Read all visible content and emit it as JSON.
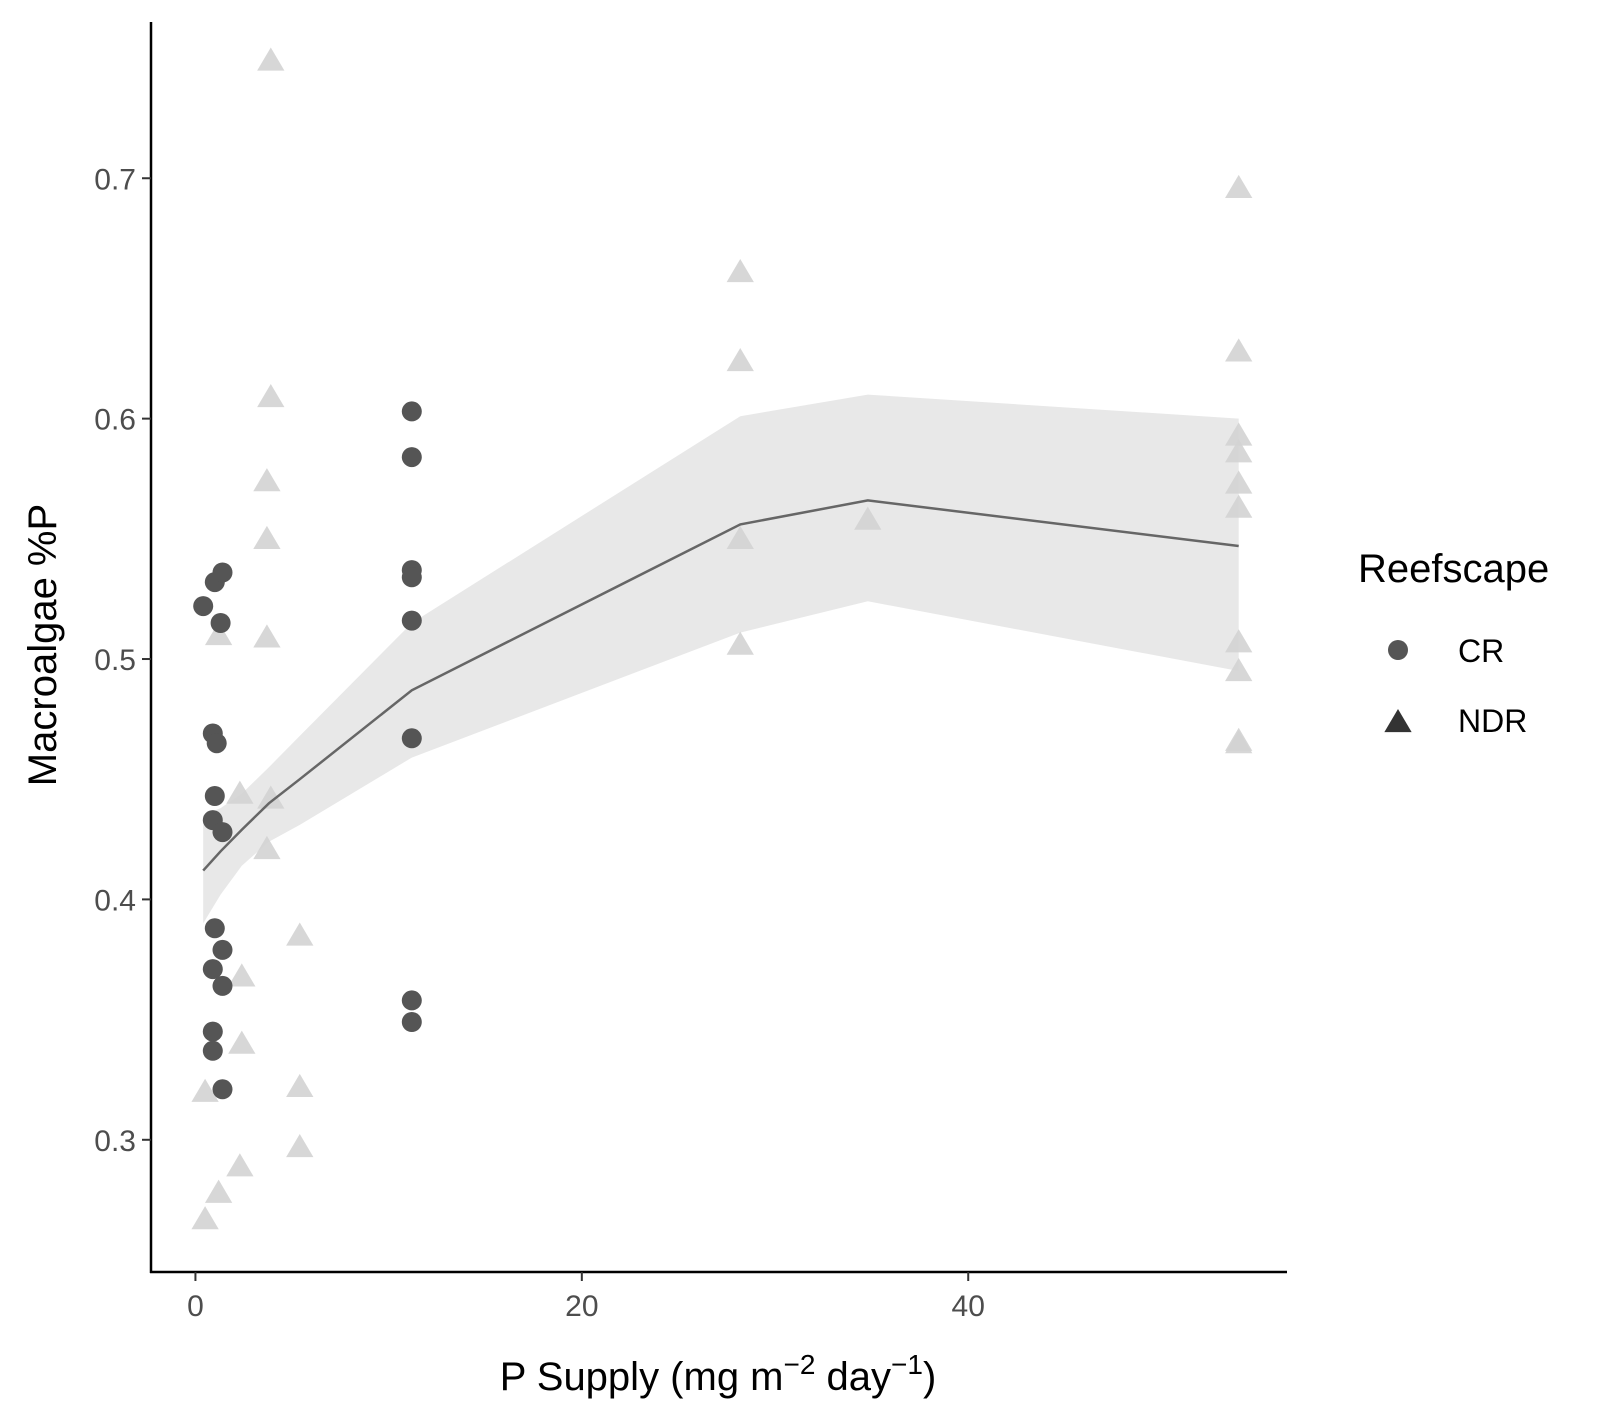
{
  "chart_data": {
    "type": "scatter",
    "title": "",
    "xlabel": {
      "base": "P Supply (mg m",
      "sup1": "−2",
      "mid": " day",
      "sup2": "−1",
      "end": ")"
    },
    "ylabel": "Macroalgae %P",
    "xlim": [
      -2.3,
      56.5
    ],
    "ylim": [
      0.245,
      0.765
    ],
    "x_ticks": [
      {
        "value": 0,
        "label": "0"
      },
      {
        "value": 20,
        "label": "20"
      },
      {
        "value": 40,
        "label": "40"
      }
    ],
    "y_ticks": [
      {
        "value": 0.3,
        "label": "0.3"
      },
      {
        "value": 0.4,
        "label": "0.4"
      },
      {
        "value": 0.5,
        "label": "0.5"
      },
      {
        "value": 0.6,
        "label": "0.6"
      },
      {
        "value": 0.7,
        "label": "0.7"
      }
    ],
    "grid": false,
    "legend": {
      "title": "Reefscape",
      "position": "right"
    },
    "colors": {
      "CR": "#555555",
      "NDR": "#d3d3d3",
      "line": "#666666",
      "ribbon": "#e8e8e8",
      "axis": "#000000"
    },
    "series": [
      {
        "name": "CR",
        "marker": "circle",
        "points": [
          [
            0.4,
            0.522
          ],
          [
            1.0,
            0.532
          ],
          [
            1.4,
            0.536
          ],
          [
            1.3,
            0.515
          ],
          [
            0.9,
            0.469
          ],
          [
            1.1,
            0.465
          ],
          [
            1.0,
            0.443
          ],
          [
            0.9,
            0.433
          ],
          [
            1.4,
            0.428
          ],
          [
            1.0,
            0.388
          ],
          [
            1.4,
            0.379
          ],
          [
            0.9,
            0.371
          ],
          [
            1.4,
            0.364
          ],
          [
            0.9,
            0.345
          ],
          [
            0.9,
            0.337
          ],
          [
            1.4,
            0.321
          ],
          [
            11.2,
            0.603
          ],
          [
            11.2,
            0.584
          ],
          [
            11.2,
            0.537
          ],
          [
            11.2,
            0.534
          ],
          [
            11.2,
            0.516
          ],
          [
            11.2,
            0.467
          ],
          [
            11.2,
            0.358
          ],
          [
            11.2,
            0.349
          ]
        ]
      },
      {
        "name": "NDR",
        "marker": "triangle",
        "points": [
          [
            3.9,
            0.749
          ],
          [
            3.9,
            0.609
          ],
          [
            3.7,
            0.574
          ],
          [
            3.7,
            0.55
          ],
          [
            3.7,
            0.509
          ],
          [
            3.9,
            0.442
          ],
          [
            3.7,
            0.421
          ],
          [
            1.2,
            0.51
          ],
          [
            2.3,
            0.444
          ],
          [
            2.4,
            0.368
          ],
          [
            2.4,
            0.34
          ],
          [
            2.3,
            0.289
          ],
          [
            1.2,
            0.278
          ],
          [
            0.5,
            0.32
          ],
          [
            0.5,
            0.267
          ],
          [
            5.4,
            0.385
          ],
          [
            5.4,
            0.322
          ],
          [
            5.4,
            0.297
          ],
          [
            28.2,
            0.661
          ],
          [
            28.2,
            0.624
          ],
          [
            28.2,
            0.55
          ],
          [
            28.2,
            0.506
          ],
          [
            34.8,
            0.558
          ],
          [
            54.0,
            0.696
          ],
          [
            54.0,
            0.628
          ],
          [
            54.0,
            0.593
          ],
          [
            54.0,
            0.586
          ],
          [
            54.0,
            0.573
          ],
          [
            54.0,
            0.563
          ],
          [
            54.0,
            0.507
          ],
          [
            54.0,
            0.495
          ],
          [
            54.0,
            0.466
          ],
          [
            54.0,
            0.465
          ]
        ]
      }
    ],
    "fit_line": {
      "x": [
        0.4,
        1.3,
        2.4,
        3.8,
        5.4,
        11.2,
        28.2,
        34.8,
        54.0
      ],
      "y": [
        0.412,
        0.42,
        0.429,
        0.44,
        0.45,
        0.487,
        0.556,
        0.566,
        0.547
      ],
      "lower": [
        0.39,
        0.402,
        0.414,
        0.424,
        0.431,
        0.459,
        0.511,
        0.524,
        0.495
      ],
      "upper": [
        0.435,
        0.438,
        0.444,
        0.455,
        0.468,
        0.515,
        0.601,
        0.61,
        0.6
      ]
    }
  }
}
